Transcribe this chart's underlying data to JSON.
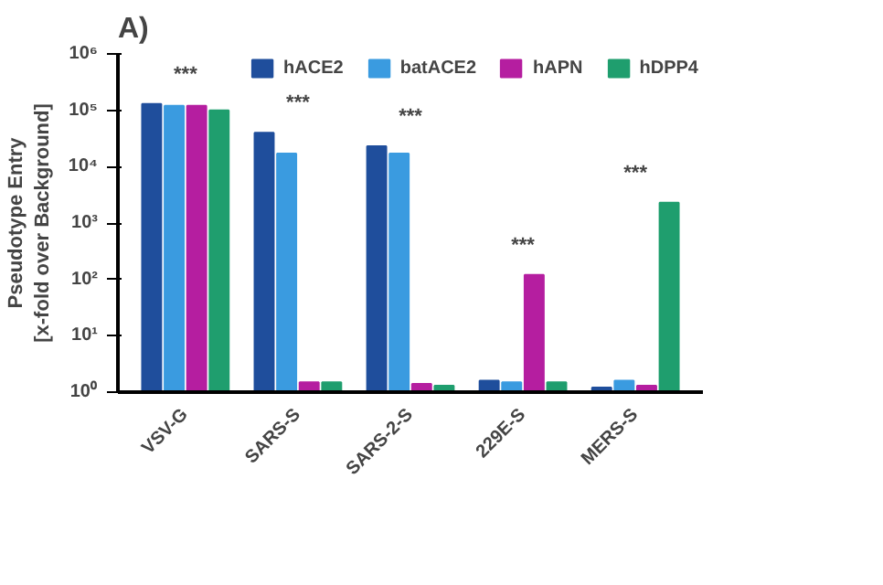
{
  "chart_data": {
    "type": "bar",
    "title": "A)",
    "ylabel": "Pseudotype Entry\n[x-fold over Background]",
    "categories": [
      "VSV-G",
      "SARS-S",
      "SARS-2-S",
      "229E-S",
      "MERS-S"
    ],
    "series": [
      {
        "name": "hACE2",
        "color": "#1f4e9c",
        "values": [
          130000,
          40000,
          23000,
          1.6,
          1.2
        ]
      },
      {
        "name": "batACE2",
        "color": "#3a9be0",
        "values": [
          120000,
          17000,
          17000,
          1.5,
          1.6
        ]
      },
      {
        "name": "hAPN",
        "color": "#b51ea0",
        "values": [
          120000,
          1.5,
          1.4,
          120,
          1.3
        ]
      },
      {
        "name": "hDPP4",
        "color": "#1f9e6e",
        "values": [
          100000,
          1.5,
          1.3,
          1.5,
          2300
        ]
      }
    ],
    "log": "y",
    "ylim": [
      1,
      1000000
    ],
    "yticks": [
      {
        "value": 1,
        "label": "10⁰"
      },
      {
        "value": 10,
        "label": "10¹"
      },
      {
        "value": 100,
        "label": "10²"
      },
      {
        "value": 1000,
        "label": "10³"
      },
      {
        "value": 10000,
        "label": "10⁴"
      },
      {
        "value": 100000,
        "label": "10⁵"
      },
      {
        "value": 1000000,
        "label": "10⁶"
      }
    ],
    "annotations": [
      "***",
      "***",
      "***",
      "***",
      "***"
    ],
    "legend": "top",
    "grid": false
  }
}
